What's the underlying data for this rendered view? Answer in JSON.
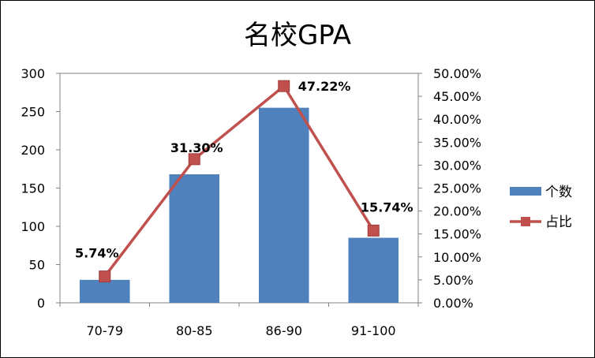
{
  "chart_data": {
    "type": "bar",
    "title": "名校GPA",
    "categories": [
      "70-79",
      "80-85",
      "86-90",
      "91-100"
    ],
    "series": [
      {
        "name": "个数",
        "type": "bar",
        "axis": "left",
        "values": [
          30,
          168,
          255,
          85
        ],
        "color": "#4f81bd"
      },
      {
        "name": "占比",
        "type": "line",
        "axis": "right",
        "values": [
          5.74,
          31.3,
          47.22,
          15.74
        ],
        "labels": [
          "5.74%",
          "31.30%",
          "47.22%",
          "15.74%"
        ],
        "color": "#c0504d"
      }
    ],
    "y_left": {
      "min": 0,
      "max": 300,
      "ticks": [
        "0",
        "50",
        "100",
        "150",
        "200",
        "250",
        "300"
      ]
    },
    "y_right": {
      "min": 0,
      "max": 50,
      "ticks": [
        "0.00%",
        "5.00%",
        "10.00%",
        "15.00%",
        "20.00%",
        "25.00%",
        "30.00%",
        "35.00%",
        "40.00%",
        "45.00%",
        "50.00%"
      ]
    },
    "grid": false,
    "legend_position": "right"
  }
}
